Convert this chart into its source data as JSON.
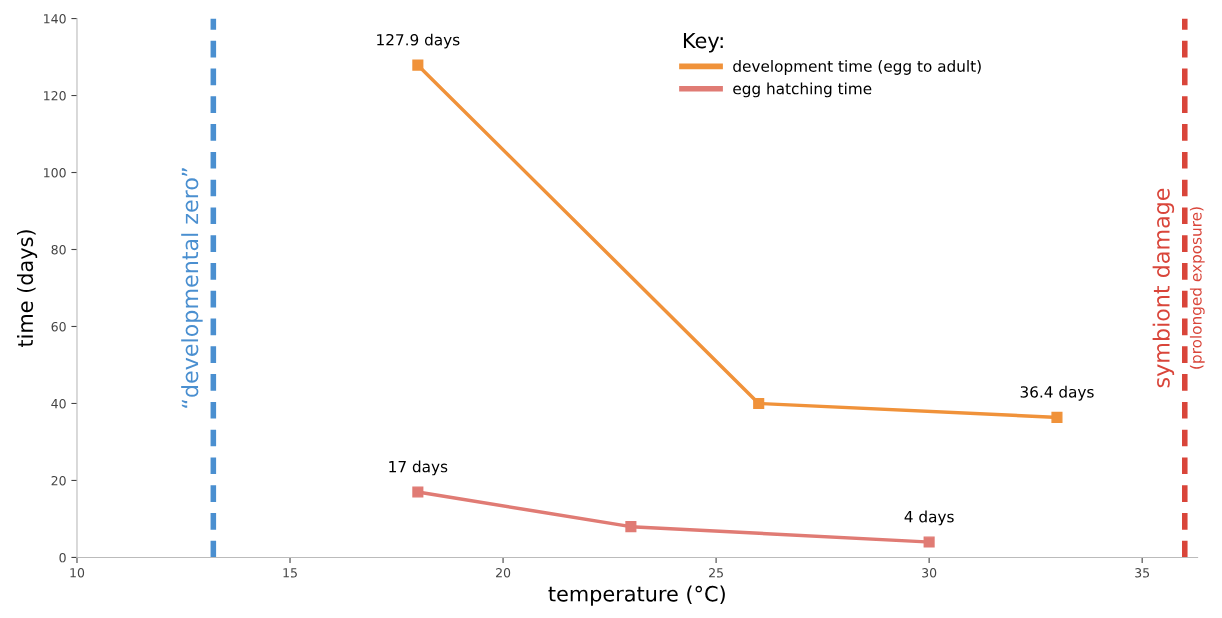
{
  "chart_data": {
    "type": "line",
    "xlabel": "temperature (°C)",
    "ylabel": "time (days)",
    "legend_title": "Key:",
    "legend": "top right",
    "marker": "square",
    "line_style": "solid",
    "grid": false,
    "xlim": [
      10,
      36.3
    ],
    "xticks": [
      10,
      15,
      20,
      25,
      30,
      35
    ],
    "ylim": [
      0,
      140
    ],
    "yticks": [
      0,
      20,
      40,
      60,
      80,
      100,
      120,
      140
    ],
    "series": [
      {
        "name": "development time (egg to adult)",
        "color": "#f0923a",
        "x": [
          18,
          26,
          33
        ],
        "values": [
          127.9,
          40,
          36.4
        ],
        "value_labels": [
          "127.9 days",
          null,
          "36.4 days"
        ]
      },
      {
        "name": "egg hatching time",
        "color": "#e07b74",
        "x": [
          18,
          23,
          30
        ],
        "values": [
          17,
          8,
          4
        ],
        "value_labels": [
          "17 days",
          null,
          "4 days"
        ]
      }
    ],
    "ref_lines": [
      {
        "axis": "x",
        "value": 13.2,
        "label": "“developmental zero”",
        "color": "#4a8fd0",
        "line_style": "dashed"
      },
      {
        "axis": "x",
        "value": 36,
        "label": "symbiont damage",
        "color": "#d9453a",
        "line_style": "dashed"
      }
    ],
    "annotations": [
      "(prolonged exposure)"
    ]
  }
}
